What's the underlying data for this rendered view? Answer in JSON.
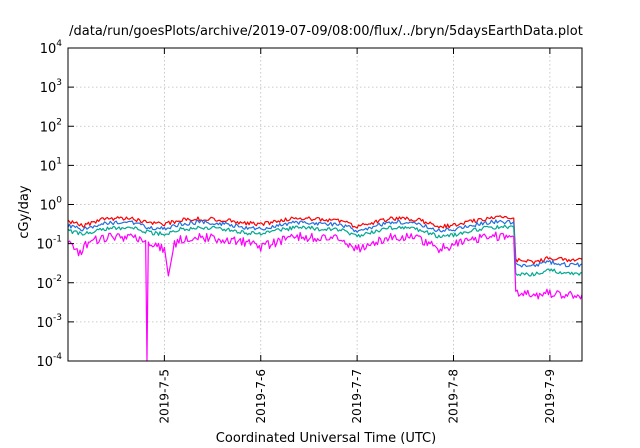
{
  "chart_data": {
    "type": "line",
    "title": "/data/run/goesPlots/archive/2019-07-09/08:00/flux/../bryn/5daysEarthData.plot",
    "xlabel": "Coordinated Universal Time (UTC)",
    "ylabel": "cGy/day",
    "y_scale": "log",
    "ylim": [
      0.0001,
      10000
    ],
    "y_ticks": [
      {
        "value": 0.0001,
        "base": "10",
        "exp": "-4"
      },
      {
        "value": 0.001,
        "base": "10",
        "exp": "-3"
      },
      {
        "value": 0.01,
        "base": "10",
        "exp": "-2"
      },
      {
        "value": 0.1,
        "base": "10",
        "exp": "-1"
      },
      {
        "value": 1,
        "base": "10",
        "exp": "0"
      },
      {
        "value": 10,
        "base": "10",
        "exp": "1"
      },
      {
        "value": 100,
        "base": "10",
        "exp": "2"
      },
      {
        "value": 1000,
        "base": "10",
        "exp": "3"
      },
      {
        "value": 10000,
        "base": "10",
        "exp": "4"
      }
    ],
    "x_type": "date",
    "xlim": [
      "2019-07-04 00:00",
      "2019-07-09 08:00"
    ],
    "x_ticks": [
      {
        "value": "2019-07-05 00:00",
        "label": "2019-7-5"
      },
      {
        "value": "2019-07-06 00:00",
        "label": "2019-7-6"
      },
      {
        "value": "2019-07-07 00:00",
        "label": "2019-7-7"
      },
      {
        "value": "2019-07-08 00:00",
        "label": "2019-7-8"
      },
      {
        "value": "2019-07-09 00:00",
        "label": "2019-7-9"
      }
    ],
    "grid": true,
    "legend": "none",
    "series": [
      {
        "color": "#ff0000",
        "values": [
          [
            "2019-07-04 00:00",
            0.38
          ],
          [
            "2019-07-04 04:00",
            0.3
          ],
          [
            "2019-07-04 08:00",
            0.42
          ],
          [
            "2019-07-04 12:00",
            0.45
          ],
          [
            "2019-07-04 16:00",
            0.45
          ],
          [
            "2019-07-04 20:00",
            0.35
          ],
          [
            "2019-07-05 00:00",
            0.32
          ],
          [
            "2019-07-05 04:00",
            0.42
          ],
          [
            "2019-07-05 08:00",
            0.45
          ],
          [
            "2019-07-05 12:00",
            0.45
          ],
          [
            "2019-07-05 16:00",
            0.4
          ],
          [
            "2019-07-05 20:00",
            0.35
          ],
          [
            "2019-07-06 00:00",
            0.32
          ],
          [
            "2019-07-06 04:00",
            0.38
          ],
          [
            "2019-07-06 08:00",
            0.45
          ],
          [
            "2019-07-06 12:00",
            0.45
          ],
          [
            "2019-07-06 16:00",
            0.42
          ],
          [
            "2019-07-06 20:00",
            0.4
          ],
          [
            "2019-07-07 00:00",
            0.28
          ],
          [
            "2019-07-07 04:00",
            0.35
          ],
          [
            "2019-07-07 08:00",
            0.45
          ],
          [
            "2019-07-07 12:00",
            0.45
          ],
          [
            "2019-07-07 16:00",
            0.4
          ],
          [
            "2019-07-07 20:00",
            0.28
          ],
          [
            "2019-07-08 00:00",
            0.3
          ],
          [
            "2019-07-08 04:00",
            0.38
          ],
          [
            "2019-07-08 08:00",
            0.45
          ],
          [
            "2019-07-08 12:00",
            0.48
          ],
          [
            "2019-07-08 15:00",
            0.45
          ],
          [
            "2019-07-08 15:30",
            0.04
          ],
          [
            "2019-07-08 20:00",
            0.035
          ],
          [
            "2019-07-09 00:00",
            0.045
          ],
          [
            "2019-07-09 04:00",
            0.04
          ],
          [
            "2019-07-09 08:00",
            0.04
          ]
        ]
      },
      {
        "color": "#1f6fe0",
        "values": [
          [
            "2019-07-04 00:00",
            0.3
          ],
          [
            "2019-07-04 04:00",
            0.24
          ],
          [
            "2019-07-04 08:00",
            0.33
          ],
          [
            "2019-07-04 12:00",
            0.36
          ],
          [
            "2019-07-04 16:00",
            0.36
          ],
          [
            "2019-07-04 20:00",
            0.27
          ],
          [
            "2019-07-05 00:00",
            0.25
          ],
          [
            "2019-07-05 04:00",
            0.33
          ],
          [
            "2019-07-05 08:00",
            0.36
          ],
          [
            "2019-07-05 12:00",
            0.36
          ],
          [
            "2019-07-05 16:00",
            0.32
          ],
          [
            "2019-07-05 20:00",
            0.27
          ],
          [
            "2019-07-06 00:00",
            0.25
          ],
          [
            "2019-07-06 04:00",
            0.3
          ],
          [
            "2019-07-06 08:00",
            0.36
          ],
          [
            "2019-07-06 12:00",
            0.36
          ],
          [
            "2019-07-06 16:00",
            0.33
          ],
          [
            "2019-07-06 20:00",
            0.32
          ],
          [
            "2019-07-07 00:00",
            0.22
          ],
          [
            "2019-07-07 04:00",
            0.28
          ],
          [
            "2019-07-07 08:00",
            0.36
          ],
          [
            "2019-07-07 12:00",
            0.36
          ],
          [
            "2019-07-07 16:00",
            0.32
          ],
          [
            "2019-07-07 20:00",
            0.22
          ],
          [
            "2019-07-08 00:00",
            0.24
          ],
          [
            "2019-07-08 04:00",
            0.3
          ],
          [
            "2019-07-08 08:00",
            0.36
          ],
          [
            "2019-07-08 12:00",
            0.38
          ],
          [
            "2019-07-08 15:00",
            0.36
          ],
          [
            "2019-07-08 15:30",
            0.03
          ],
          [
            "2019-07-08 20:00",
            0.028
          ],
          [
            "2019-07-09 00:00",
            0.035
          ],
          [
            "2019-07-09 04:00",
            0.03
          ],
          [
            "2019-07-09 08:00",
            0.03
          ]
        ]
      },
      {
        "color": "#00a890",
        "values": [
          [
            "2019-07-04 00:00",
            0.22
          ],
          [
            "2019-07-04 04:00",
            0.18
          ],
          [
            "2019-07-04 08:00",
            0.24
          ],
          [
            "2019-07-04 12:00",
            0.26
          ],
          [
            "2019-07-04 16:00",
            0.26
          ],
          [
            "2019-07-04 20:00",
            0.2
          ],
          [
            "2019-07-05 00:00",
            0.18
          ],
          [
            "2019-07-05 04:00",
            0.24
          ],
          [
            "2019-07-05 08:00",
            0.26
          ],
          [
            "2019-07-05 12:00",
            0.26
          ],
          [
            "2019-07-05 16:00",
            0.23
          ],
          [
            "2019-07-05 20:00",
            0.2
          ],
          [
            "2019-07-06 00:00",
            0.18
          ],
          [
            "2019-07-06 04:00",
            0.22
          ],
          [
            "2019-07-06 08:00",
            0.26
          ],
          [
            "2019-07-06 12:00",
            0.26
          ],
          [
            "2019-07-06 16:00",
            0.24
          ],
          [
            "2019-07-06 20:00",
            0.23
          ],
          [
            "2019-07-07 00:00",
            0.16
          ],
          [
            "2019-07-07 04:00",
            0.2
          ],
          [
            "2019-07-07 08:00",
            0.26
          ],
          [
            "2019-07-07 12:00",
            0.26
          ],
          [
            "2019-07-07 16:00",
            0.23
          ],
          [
            "2019-07-07 20:00",
            0.16
          ],
          [
            "2019-07-08 00:00",
            0.17
          ],
          [
            "2019-07-08 04:00",
            0.22
          ],
          [
            "2019-07-08 08:00",
            0.26
          ],
          [
            "2019-07-08 12:00",
            0.28
          ],
          [
            "2019-07-08 15:00",
            0.26
          ],
          [
            "2019-07-08 15:30",
            0.018
          ],
          [
            "2019-07-08 20:00",
            0.017
          ],
          [
            "2019-07-09 00:00",
            0.022
          ],
          [
            "2019-07-09 04:00",
            0.018
          ],
          [
            "2019-07-09 08:00",
            0.018
          ]
        ]
      },
      {
        "color": "#ff00ff",
        "values": [
          [
            "2019-07-04 00:00",
            0.15
          ],
          [
            "2019-07-04 03:00",
            0.06
          ],
          [
            "2019-07-04 04:00",
            0.1
          ],
          [
            "2019-07-04 08:00",
            0.15
          ],
          [
            "2019-07-04 12:00",
            0.16
          ],
          [
            "2019-07-04 16:00",
            0.15
          ],
          [
            "2019-07-04 19:20",
            0.12
          ],
          [
            "2019-07-04 19:40",
            0.0001
          ],
          [
            "2019-07-04 20:00",
            0.1
          ],
          [
            "2019-07-05 00:00",
            0.08
          ],
          [
            "2019-07-05 01:00",
            0.015
          ],
          [
            "2019-07-05 02:30",
            0.1
          ],
          [
            "2019-07-05 04:00",
            0.14
          ],
          [
            "2019-07-05 08:00",
            0.16
          ],
          [
            "2019-07-05 12:00",
            0.15
          ],
          [
            "2019-07-05 16:00",
            0.14
          ],
          [
            "2019-07-05 20:00",
            0.12
          ],
          [
            "2019-07-06 00:00",
            0.09
          ],
          [
            "2019-07-06 04:00",
            0.12
          ],
          [
            "2019-07-06 08:00",
            0.16
          ],
          [
            "2019-07-06 12:00",
            0.16
          ],
          [
            "2019-07-06 16:00",
            0.15
          ],
          [
            "2019-07-06 20:00",
            0.14
          ],
          [
            "2019-07-07 00:00",
            0.08
          ],
          [
            "2019-07-07 04:00",
            0.12
          ],
          [
            "2019-07-07 08:00",
            0.16
          ],
          [
            "2019-07-07 12:00",
            0.16
          ],
          [
            "2019-07-07 16:00",
            0.14
          ],
          [
            "2019-07-07 20:00",
            0.08
          ],
          [
            "2019-07-08 00:00",
            0.1
          ],
          [
            "2019-07-08 04:00",
            0.13
          ],
          [
            "2019-07-08 08:00",
            0.16
          ],
          [
            "2019-07-08 12:00",
            0.17
          ],
          [
            "2019-07-08 15:00",
            0.15
          ],
          [
            "2019-07-08 15:30",
            0.006
          ],
          [
            "2019-07-08 20:00",
            0.005
          ],
          [
            "2019-07-09 00:00",
            0.006
          ],
          [
            "2019-07-09 04:00",
            0.005
          ],
          [
            "2019-07-09 08:00",
            0.005
          ]
        ]
      }
    ]
  }
}
